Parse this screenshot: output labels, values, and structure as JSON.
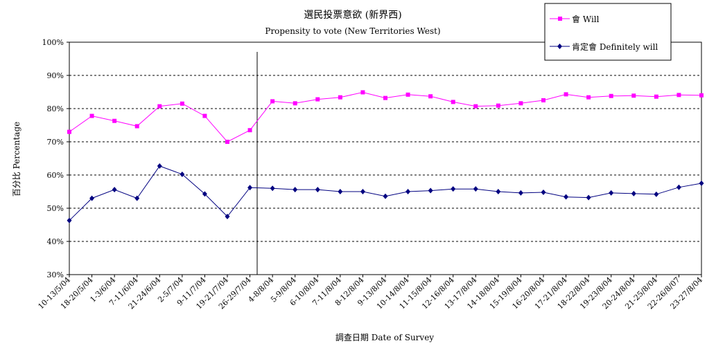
{
  "chart_data": {
    "type": "line",
    "title": "選民投票意欲 (新界西)",
    "subtitle": "Propensity to vote (New Territories West)",
    "xlabel": "調查日期 Date of Survey",
    "ylabel": "百分比 Percentage",
    "ylim": [
      30,
      100
    ],
    "yticks": [
      "30%",
      "40%",
      "50%",
      "60%",
      "70%",
      "80%",
      "90%",
      "100%"
    ],
    "grid": "horizontal dashed",
    "legend_position": "top-right",
    "categories": [
      "10-13/5/04",
      "18-20/5/04",
      "1-3/6/04",
      "7-11/6/04",
      "21-24/6/04",
      "2-5/7/04",
      "9-11/7/04",
      "19-21/7/04",
      "26-29/7/04",
      "4-8/8/04",
      "5-9/8/04",
      "6-10/8/04",
      "7-11/8/04",
      "8-12/8/04",
      "9-13/8/04",
      "10-14/8/04",
      "11-15/8/04",
      "12-16/8/04",
      "13-17/8/04",
      "14-18/8/04",
      "15-19/8/04",
      "16-20/8/04",
      "17-21/8/04",
      "18-22/8/04",
      "19-23/8/04",
      "20-24/8/04",
      "21-25/8/04",
      "22-26/8/07",
      "23-27/8/04"
    ],
    "series": [
      {
        "name": "會 Will",
        "color": "#ff00ff",
        "marker": "square",
        "values": [
          73.0,
          77.8,
          76.3,
          74.7,
          80.7,
          81.5,
          77.8,
          70.0,
          73.5,
          82.2,
          81.6,
          82.8,
          83.4,
          84.9,
          83.2,
          84.2,
          83.7,
          82.0,
          80.7,
          80.9,
          81.6,
          82.5,
          84.3,
          83.4,
          83.8,
          83.9,
          83.6,
          84.1,
          84.0
        ]
      },
      {
        "name": "肯定會 Definitely will",
        "color": "#000080",
        "marker": "diamond",
        "values": [
          46.3,
          53.0,
          55.6,
          53.0,
          62.7,
          60.2,
          54.3,
          47.5,
          56.2,
          56.0,
          55.6,
          55.6,
          55.0,
          55.0,
          53.6,
          55.0,
          55.3,
          55.8,
          55.8,
          55.0,
          54.6,
          54.8,
          53.4,
          53.2,
          54.6,
          54.4,
          54.2,
          56.3,
          57.5
        ]
      }
    ]
  }
}
